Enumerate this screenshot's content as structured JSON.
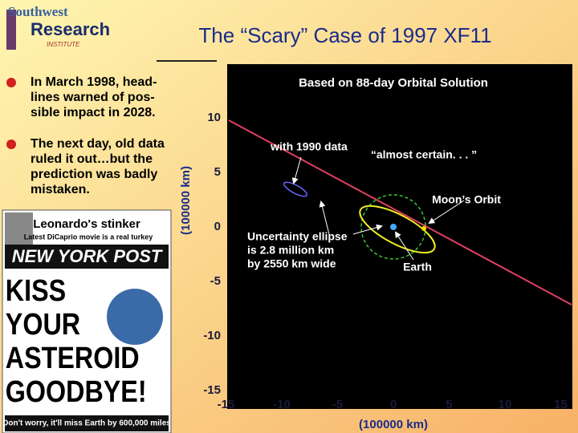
{
  "logo": {
    "line1": "Southwest",
    "line2": "Research",
    "line3": "INSTITUTE"
  },
  "title": "The “Scary” Case of 1997 XF11",
  "bullets": [
    {
      "lines": [
        "In March 1998, head-",
        "lines warned of pos-",
        "sible impact in 2028."
      ]
    },
    {
      "lines": [
        "The next day, old data",
        "ruled it out…but the",
        "prediction was badly",
        "mistaken."
      ]
    }
  ],
  "newspaper": {
    "headline": "Leonardo's stinker",
    "subhead": "Latest DiCaprio movie is a real turkey",
    "masthead": "NEW YORK POST",
    "cover_lines": [
      "KISS",
      "YOUR",
      "ASTEROID",
      "GOODBYE!"
    ],
    "footer": "Don't worry, it'll miss Earth by 600,000 miles"
  },
  "plot": {
    "title": "Based on 88-day Orbital Solution",
    "y_label": "(100000 km)",
    "x_label": "(100000 km)",
    "yticks": [
      10,
      5,
      0,
      -5,
      -10,
      -15
    ],
    "xticks": [
      -15,
      -10,
      -5,
      0,
      5,
      10,
      15
    ],
    "annotations": {
      "old_data": "with 1990 data",
      "quote": "“almost certain. . . ”",
      "moon": "Moon’s Orbit",
      "ellipse": [
        "Uncertainty ellipse",
        "is 2.8 million km",
        "by 2550 km wide"
      ],
      "earth": "Earth"
    }
  }
}
